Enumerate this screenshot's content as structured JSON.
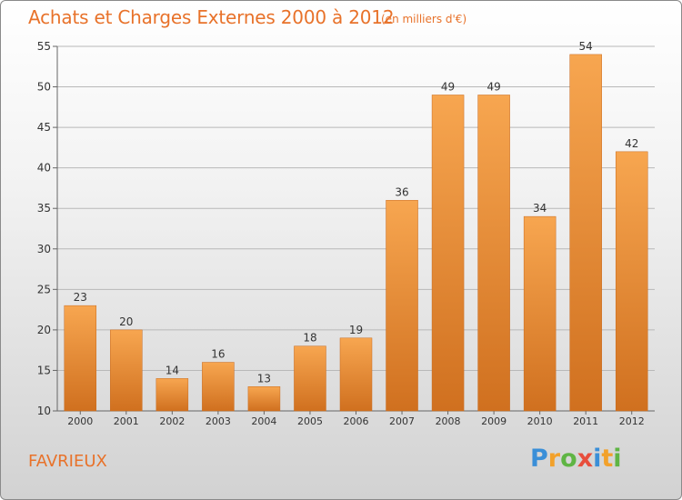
{
  "title": "Achats et Charges Externes 2000 à 2012",
  "subtitle": "(en milliers d'€)",
  "commune": "FAVRIEUX",
  "brand": {
    "letters": [
      "P",
      "r",
      "o",
      "x",
      "i",
      "t",
      "i"
    ],
    "colors": [
      "#3a8fd8",
      "#f2a12b",
      "#5fb544",
      "#e84e3c",
      "#3a8fd8",
      "#f2a12b",
      "#5fb544"
    ]
  },
  "colors": {
    "accent": "#e8722a",
    "bar_top": "#f7a650",
    "bar_bottom": "#d0701f",
    "grid": "#b8b8b8",
    "axis": "#666666",
    "text": "#333333"
  },
  "chart_data": {
    "type": "bar",
    "title": "Achats et Charges Externes 2000 à 2012",
    "subtitle": "(en milliers d'€)",
    "categories": [
      "2000",
      "2001",
      "2002",
      "2003",
      "2004",
      "2005",
      "2006",
      "2007",
      "2008",
      "2009",
      "2010",
      "2011",
      "2012"
    ],
    "values": [
      23,
      20,
      14,
      16,
      13,
      18,
      19,
      36,
      49,
      49,
      34,
      54,
      42
    ],
    "ylim": [
      10,
      55
    ],
    "yticks": [
      10,
      15,
      20,
      25,
      30,
      35,
      40,
      45,
      50,
      55
    ],
    "grid": true,
    "xlabel": "",
    "ylabel": ""
  }
}
